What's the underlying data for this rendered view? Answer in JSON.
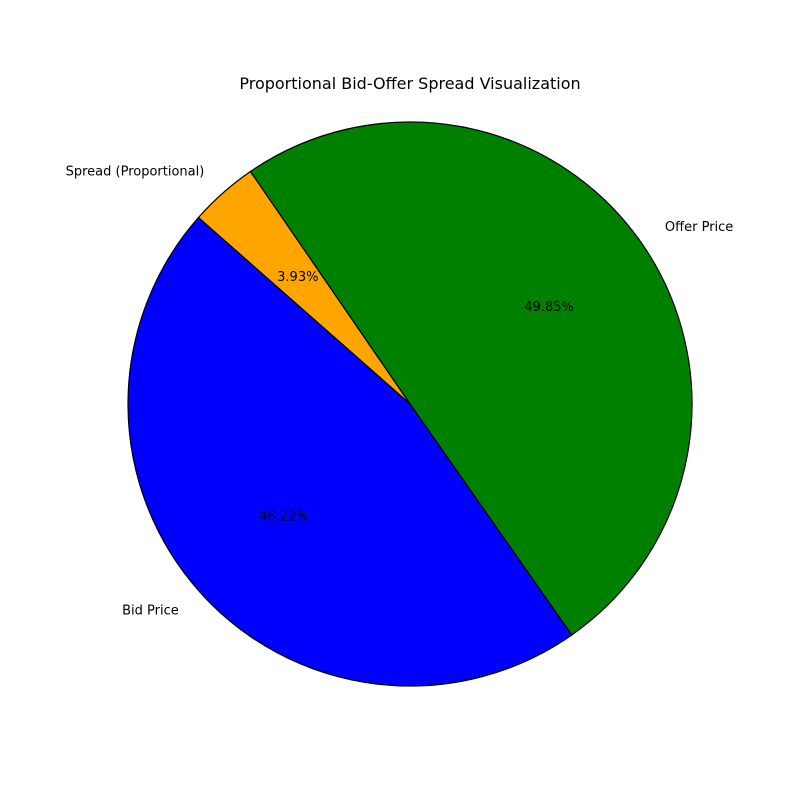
{
  "chart_data": {
    "type": "pie",
    "title": "Proportional Bid-Offer Spread Visualization",
    "slices": [
      {
        "label": "Offer Price",
        "value": 49.85,
        "pct_label": "49.85%",
        "color": "#008000"
      },
      {
        "label": "Spread (Proportional)",
        "value": 3.93,
        "pct_label": "3.93%",
        "color": "#FFA500"
      },
      {
        "label": "Bid Price",
        "value": 46.22,
        "pct_label": "46.22%",
        "color": "#0000FF"
      }
    ],
    "start_angle_deg": -55,
    "direction": "counterclockwise",
    "edge_color": "#000000",
    "legend": "none"
  }
}
